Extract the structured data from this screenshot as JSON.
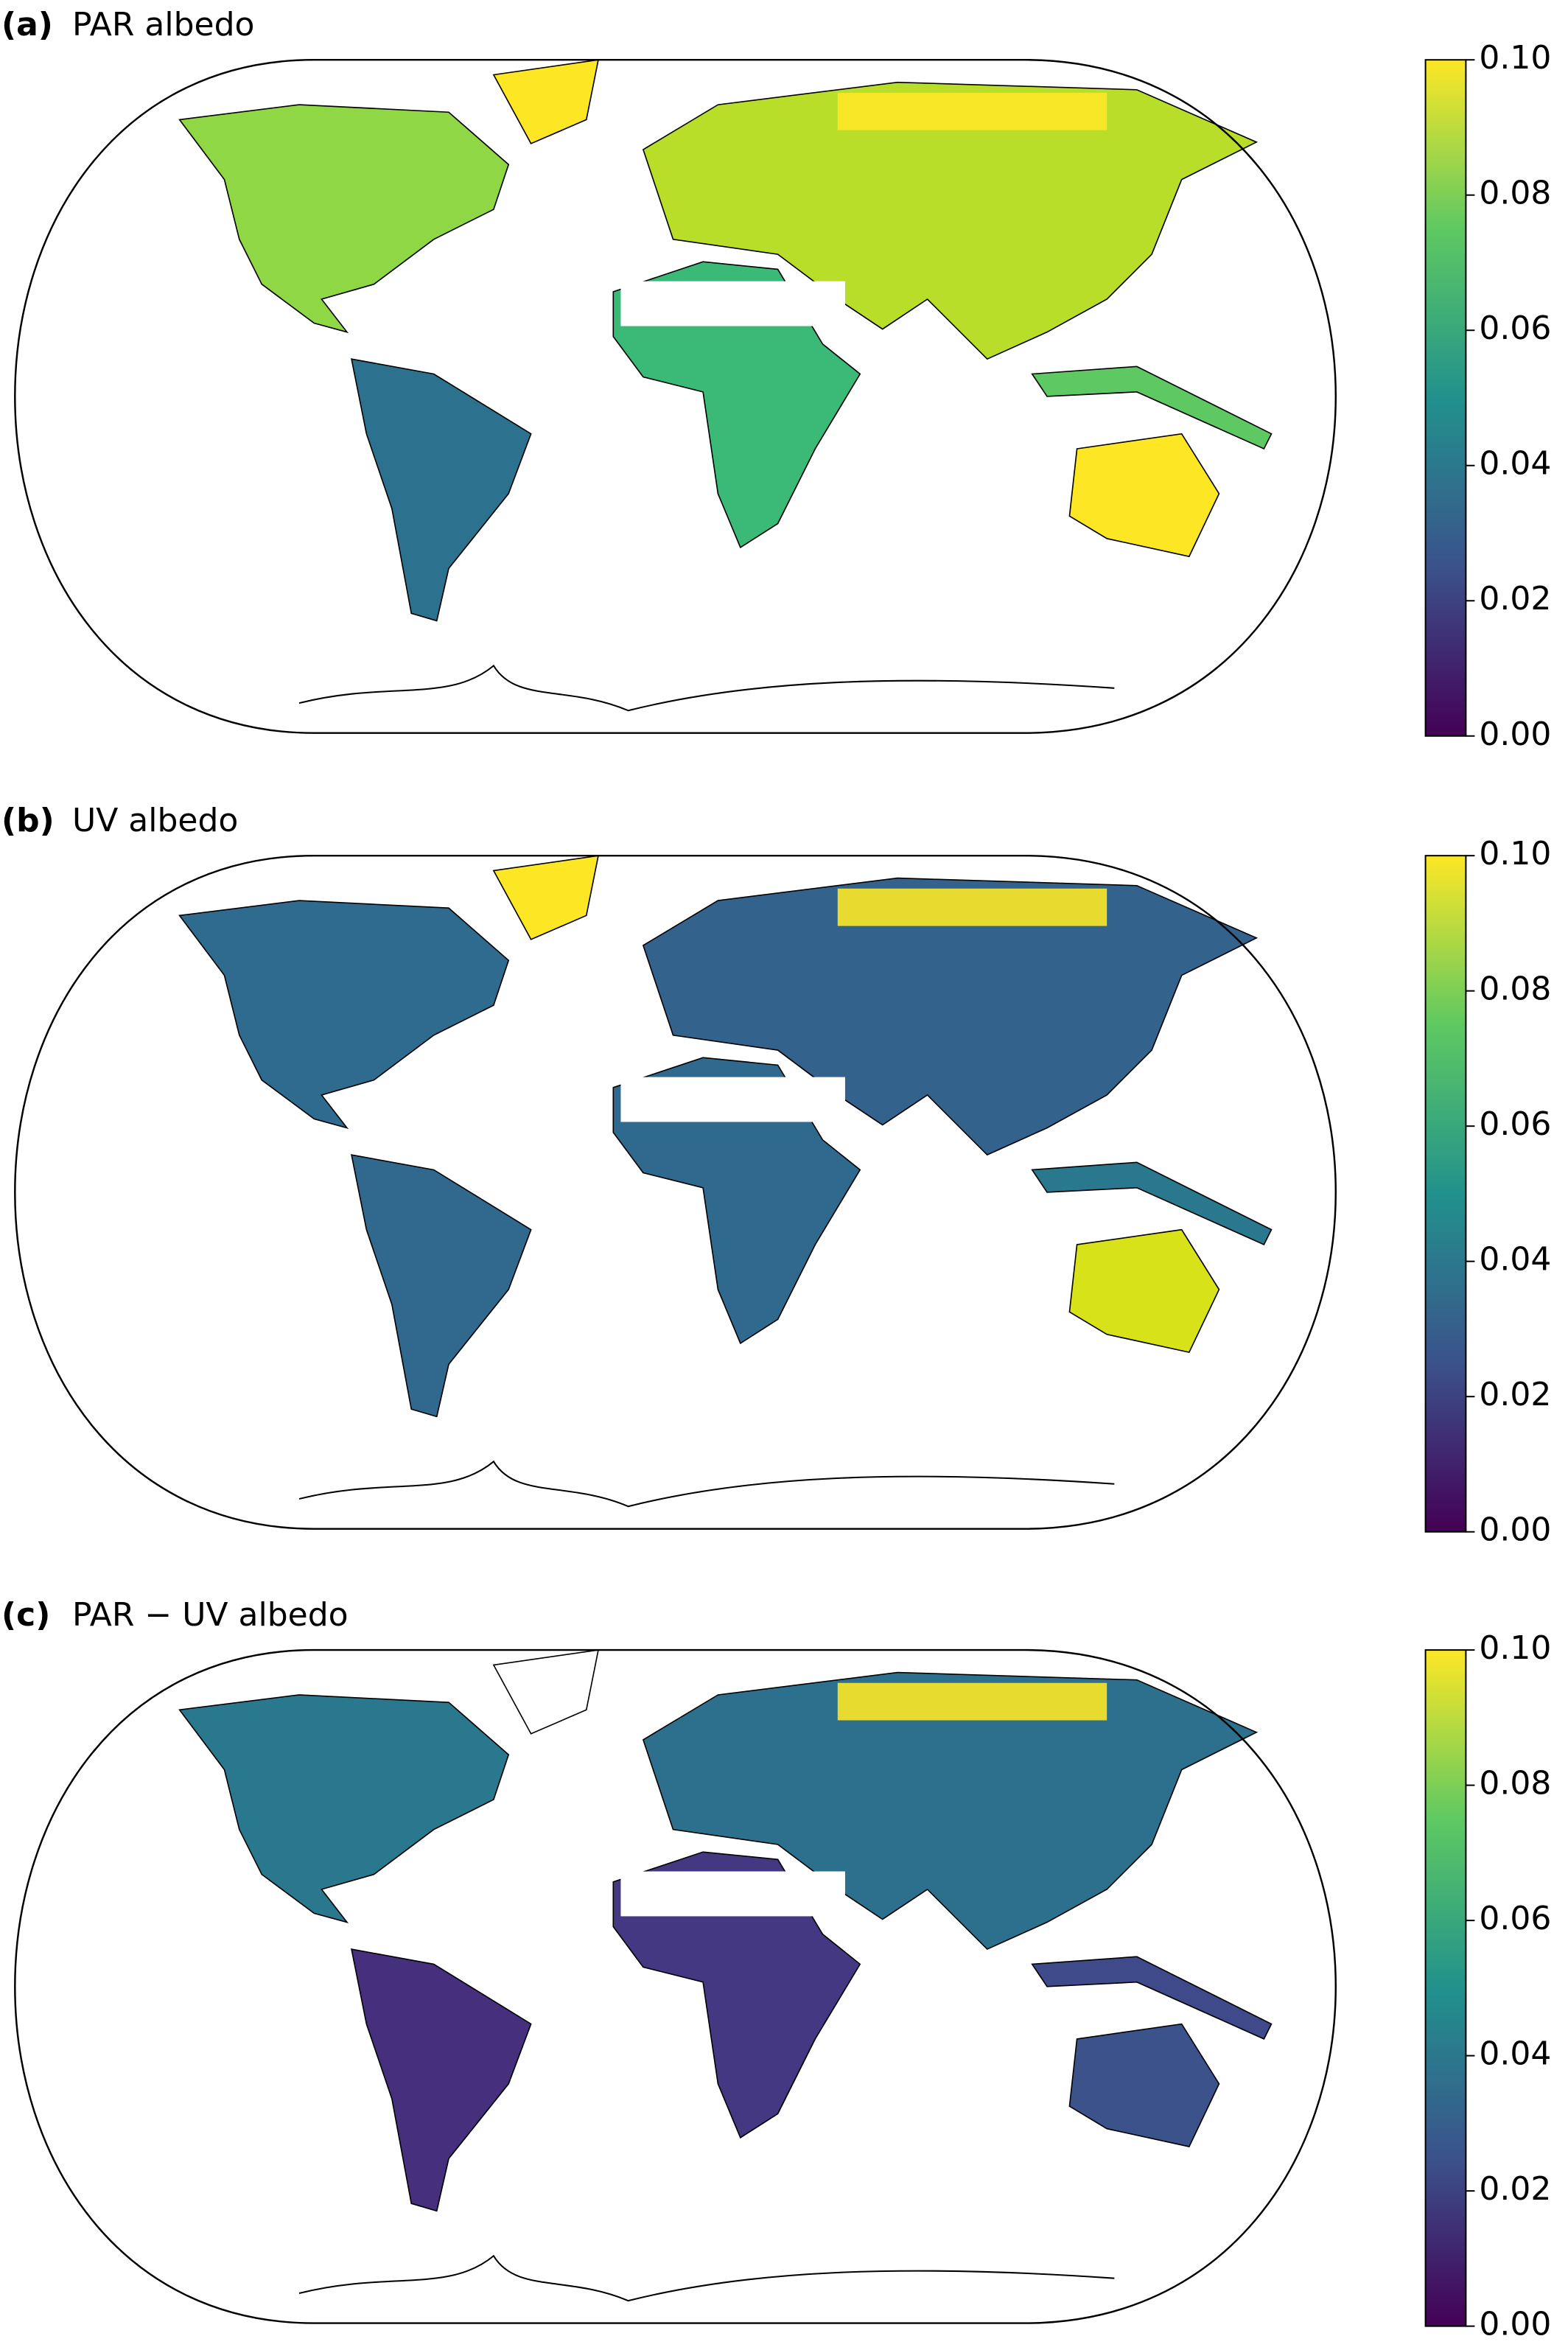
{
  "panels": [
    {
      "label": "(a)",
      "title": "PAR albedo",
      "colorbar": {
        "lim": [
          0,
          0.1
        ],
        "ticks": [
          {
            "value": 0,
            "label": "0.00"
          },
          {
            "value": 0.02,
            "label": "0.02"
          },
          {
            "value": 0.04,
            "label": "0.04"
          },
          {
            "value": 0.06,
            "label": "0.06"
          },
          {
            "value": 0.08,
            "label": "0.08"
          },
          {
            "value": 0.1,
            "label": "0.10"
          }
        ]
      }
    },
    {
      "label": "(b)",
      "title": "UV albedo",
      "colorbar": {
        "lim": [
          0,
          0.1
        ],
        "ticks": [
          {
            "value": 0,
            "label": "0.00"
          },
          {
            "value": 0.02,
            "label": "0.02"
          },
          {
            "value": 0.04,
            "label": "0.04"
          },
          {
            "value": 0.06,
            "label": "0.06"
          },
          {
            "value": 0.08,
            "label": "0.08"
          },
          {
            "value": 0.1,
            "label": "0.10"
          }
        ]
      }
    },
    {
      "label": "(c)",
      "title": "PAR − UV albedo",
      "colorbar": {
        "lim": [
          0,
          0.1
        ],
        "ticks": [
          {
            "value": 0,
            "label": "0.00"
          },
          {
            "value": 0.02,
            "label": "0.02"
          },
          {
            "value": 0.04,
            "label": "0.04"
          },
          {
            "value": 0.06,
            "label": "0.06"
          },
          {
            "value": 0.08,
            "label": "0.08"
          },
          {
            "value": 0.1,
            "label": "0.10"
          }
        ]
      }
    }
  ]
}
